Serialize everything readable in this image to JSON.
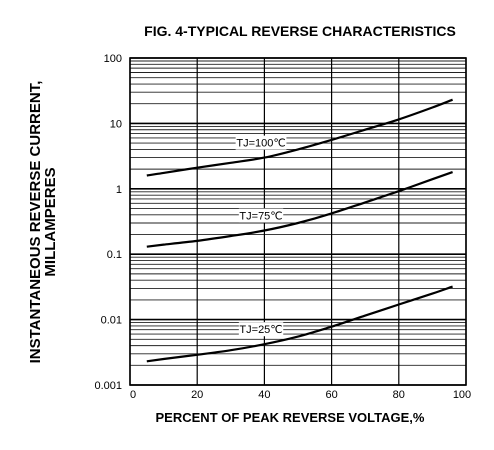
{
  "chart_data": {
    "type": "line",
    "title": "FIG. 4-TYPICAL REVERSE CHARACTERISTICS",
    "xlabel": "PERCENT OF PEAK REVERSE VOLTAGE,%",
    "ylabel_line1": "INSTANTANEOUS REVERSE CURRENT,",
    "ylabel_line2": "MILLAMPERES",
    "xlim": [
      0,
      100
    ],
    "ylim": [
      0.001,
      100
    ],
    "yscale": "log",
    "grid": true,
    "x_ticks": [
      0,
      20,
      40,
      60,
      80,
      100
    ],
    "x_tick_labels": [
      "0",
      "20",
      "40",
      "60",
      "80",
      "100"
    ],
    "y_ticks": [
      0.001,
      0.01,
      0.1,
      1,
      10,
      100
    ],
    "y_tick_labels": [
      "0.001",
      "0.01",
      "0.1",
      "1",
      "10",
      "100"
    ],
    "series": [
      {
        "name": "TJ=100℃",
        "x": [
          5,
          10,
          20,
          30,
          40,
          50,
          60,
          70,
          80,
          90,
          96
        ],
        "y": [
          1.6,
          1.75,
          2.1,
          2.5,
          3.0,
          4.0,
          5.6,
          8.0,
          11.5,
          17.5,
          23
        ]
      },
      {
        "name": "TJ=75℃",
        "x": [
          5,
          10,
          20,
          30,
          40,
          50,
          60,
          70,
          80,
          90,
          96
        ],
        "y": [
          0.13,
          0.14,
          0.16,
          0.19,
          0.23,
          0.3,
          0.42,
          0.62,
          0.92,
          1.4,
          1.8
        ]
      },
      {
        "name": "TJ=25℃",
        "x": [
          5,
          10,
          20,
          30,
          40,
          50,
          60,
          70,
          80,
          90,
          96
        ],
        "y": [
          0.0023,
          0.0025,
          0.0029,
          0.0034,
          0.0042,
          0.0055,
          0.0078,
          0.0115,
          0.017,
          0.025,
          0.032
        ]
      }
    ]
  }
}
